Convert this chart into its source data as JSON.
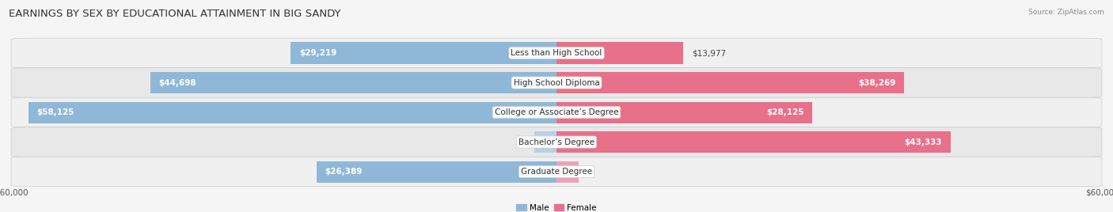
{
  "title": "EARNINGS BY SEX BY EDUCATIONAL ATTAINMENT IN BIG SANDY",
  "source": "Source: ZipAtlas.com",
  "categories": [
    "Less than High School",
    "High School Diploma",
    "College or Associate’s Degree",
    "Bachelor’s Degree",
    "Graduate Degree"
  ],
  "male_values": [
    29219,
    44698,
    58125,
    0,
    26389
  ],
  "female_values": [
    13977,
    38269,
    28125,
    43333,
    0
  ],
  "male_color": "#8fb8d8",
  "female_color": "#e8708a",
  "male_color_light": "#b8d0e8",
  "female_color_light": "#f0a0b8",
  "max_val": 60000,
  "bar_height": 0.72,
  "row_bg_colors": [
    "#f0f0f0",
    "#e8e8e8"
  ],
  "legend_male_color": "#8fb8d8",
  "legend_female_color": "#e8708a",
  "title_fontsize": 9.5,
  "label_fontsize": 7.5,
  "category_fontsize": 7.5,
  "axis_label_fontsize": 7.5,
  "fig_bg": "#f5f5f5"
}
